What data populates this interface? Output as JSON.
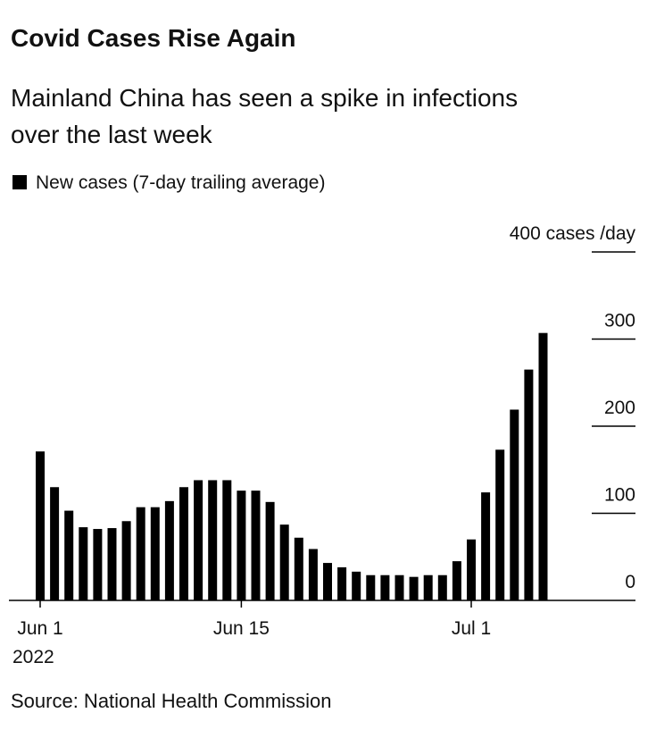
{
  "chart_data": {
    "type": "bar",
    "title": "Covid Cases Rise Again",
    "subtitle": [
      "Mainland China has seen a spike in infections",
      "over the last week"
    ],
    "source": "Source: National Health Commission",
    "categories": [
      "Jun 1",
      null,
      null,
      null,
      null,
      null,
      null,
      null,
      null,
      null,
      null,
      null,
      null,
      null,
      "Jun 15",
      null,
      null,
      null,
      null,
      null,
      null,
      null,
      null,
      null,
      null,
      null,
      null,
      null,
      null,
      null,
      "Jul 1",
      null,
      null,
      null,
      null,
      null
    ],
    "x_year": "2022",
    "series": [
      {
        "name": "New cases (7-day trailing average)",
        "color": "#000000",
        "values": [
          171,
          130,
          103,
          84,
          82,
          83,
          91,
          107,
          107,
          114,
          130,
          138,
          138,
          138,
          126,
          126,
          113,
          87,
          72,
          59,
          43,
          38,
          33,
          29,
          29,
          29,
          27,
          29,
          29,
          45,
          70,
          124,
          173,
          219,
          265,
          307
        ]
      }
    ],
    "ylim": [
      0,
      400
    ],
    "yticks": [
      0,
      100,
      200,
      300,
      {
        "value": 400,
        "label": "400 cases /day"
      }
    ],
    "grid": true
  }
}
